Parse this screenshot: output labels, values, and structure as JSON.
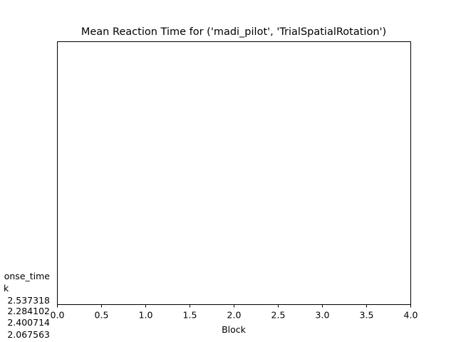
{
  "chart_data": {
    "type": "line",
    "title": "Mean Reaction Time for ('madi_pilot', 'TrialSpatialRotation')",
    "xlabel": "Block",
    "ylabel_lines": [
      "response_time",
      "k",
      "2.537318",
      "2.284102",
      "2.400714",
      "2.067563"
    ],
    "xlim": [
      0.0,
      4.0
    ],
    "xticks": [
      0.0,
      0.5,
      1.0,
      1.5,
      2.0,
      2.5,
      3.0,
      3.5,
      4.0
    ],
    "xtick_labels": [
      "0.0",
      "0.5",
      "1.0",
      "1.5",
      "2.0",
      "2.5",
      "3.0",
      "3.5",
      "4.0"
    ],
    "ylabel_visible": [
      "onse_time",
      "k",
      " 2.537318",
      " 2.284102",
      " 2.400714",
      " 2.067563"
    ],
    "grid": false,
    "series": []
  }
}
